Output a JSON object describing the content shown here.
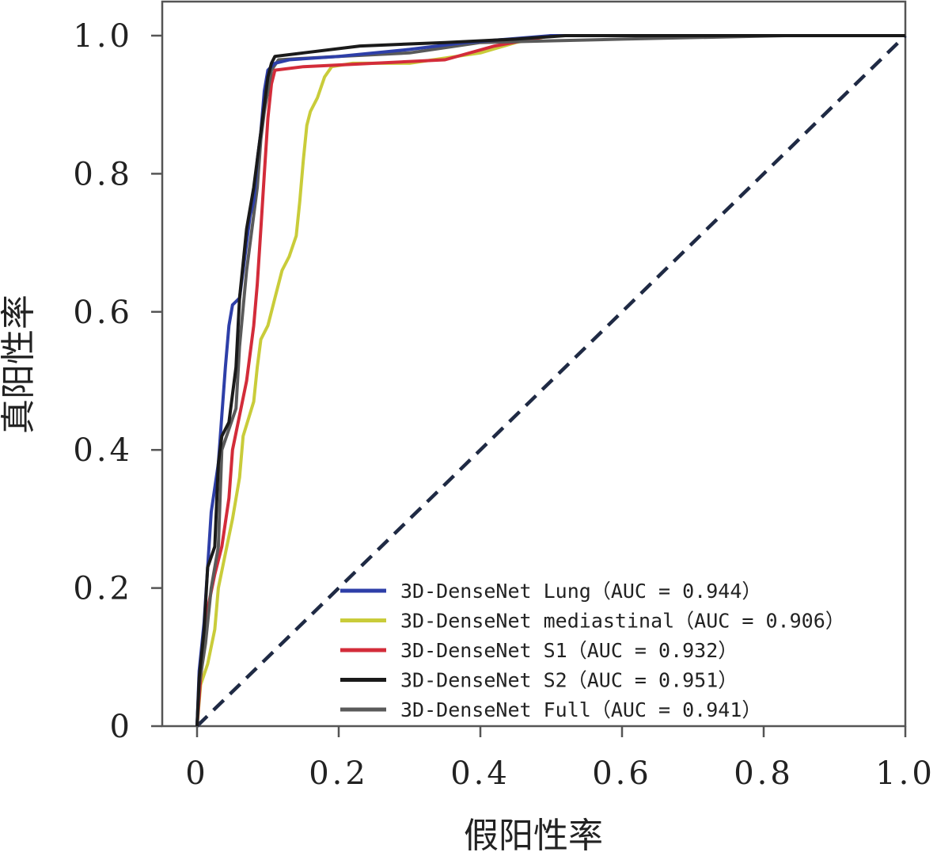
{
  "chart_data": {
    "type": "line",
    "title": "",
    "xlabel": "假阳性率",
    "ylabel": "真阳性率",
    "xlim": [
      0,
      1.0
    ],
    "ylim": [
      0,
      1.0
    ],
    "grid": false,
    "legend_position": "bottom-right",
    "x_ticks": [
      {
        "value": 0,
        "label": "0"
      },
      {
        "value": 0.2,
        "label": "0.2"
      },
      {
        "value": 0.4,
        "label": "0.4"
      },
      {
        "value": 0.6,
        "label": "0.6"
      },
      {
        "value": 0.8,
        "label": "0.8"
      },
      {
        "value": 1.0,
        "label": "1.0"
      }
    ],
    "y_ticks": [
      {
        "value": 0,
        "label": "0"
      },
      {
        "value": 0.2,
        "label": "0.2"
      },
      {
        "value": 0.4,
        "label": "0.4"
      },
      {
        "value": 0.6,
        "label": "0.6"
      },
      {
        "value": 0.8,
        "label": "0.8"
      },
      {
        "value": 1.0,
        "label": "1.0"
      }
    ],
    "diagonal": {
      "points": [
        [
          0,
          0
        ],
        [
          1,
          1
        ]
      ],
      "color": "#1f2a44",
      "style": "dashed"
    },
    "series": [
      {
        "name": "3D-DenseNet Lung（AUC = 0.944）",
        "color": "#2e3fa8",
        "points": [
          [
            0,
            0
          ],
          [
            0.003,
            0.08
          ],
          [
            0.01,
            0.15
          ],
          [
            0.02,
            0.31
          ],
          [
            0.03,
            0.38
          ],
          [
            0.035,
            0.45
          ],
          [
            0.04,
            0.52
          ],
          [
            0.045,
            0.58
          ],
          [
            0.05,
            0.61
          ],
          [
            0.06,
            0.62
          ],
          [
            0.065,
            0.66
          ],
          [
            0.07,
            0.7
          ],
          [
            0.075,
            0.74
          ],
          [
            0.08,
            0.76
          ],
          [
            0.085,
            0.82
          ],
          [
            0.09,
            0.86
          ],
          [
            0.095,
            0.92
          ],
          [
            0.1,
            0.95
          ],
          [
            0.11,
            0.96
          ],
          [
            0.13,
            0.965
          ],
          [
            0.2,
            0.97
          ],
          [
            0.3,
            0.98
          ],
          [
            0.38,
            0.99
          ],
          [
            0.5,
            1.0
          ],
          [
            1.0,
            1.0
          ]
        ]
      },
      {
        "name": "3D-DenseNet mediastinal（AUC = 0.906）",
        "color": "#c9cc3a",
        "points": [
          [
            0,
            0
          ],
          [
            0.005,
            0.06
          ],
          [
            0.015,
            0.09
          ],
          [
            0.025,
            0.14
          ],
          [
            0.03,
            0.2
          ],
          [
            0.04,
            0.25
          ],
          [
            0.05,
            0.3
          ],
          [
            0.06,
            0.36
          ],
          [
            0.065,
            0.42
          ],
          [
            0.08,
            0.47
          ],
          [
            0.085,
            0.52
          ],
          [
            0.09,
            0.56
          ],
          [
            0.1,
            0.58
          ],
          [
            0.11,
            0.62
          ],
          [
            0.12,
            0.66
          ],
          [
            0.13,
            0.68
          ],
          [
            0.14,
            0.71
          ],
          [
            0.145,
            0.76
          ],
          [
            0.15,
            0.82
          ],
          [
            0.155,
            0.87
          ],
          [
            0.16,
            0.89
          ],
          [
            0.17,
            0.91
          ],
          [
            0.18,
            0.94
          ],
          [
            0.19,
            0.955
          ],
          [
            0.22,
            0.96
          ],
          [
            0.3,
            0.96
          ],
          [
            0.4,
            0.975
          ],
          [
            0.45,
            0.99
          ],
          [
            0.5,
            1.0
          ],
          [
            1.0,
            1.0
          ]
        ]
      },
      {
        "name": "3D-DenseNet S1（AUC = 0.932）",
        "color": "#d32c3a",
        "points": [
          [
            0,
            0
          ],
          [
            0.005,
            0.07
          ],
          [
            0.015,
            0.17
          ],
          [
            0.025,
            0.22
          ],
          [
            0.035,
            0.26
          ],
          [
            0.045,
            0.33
          ],
          [
            0.05,
            0.4
          ],
          [
            0.06,
            0.45
          ],
          [
            0.07,
            0.5
          ],
          [
            0.08,
            0.58
          ],
          [
            0.085,
            0.64
          ],
          [
            0.09,
            0.72
          ],
          [
            0.095,
            0.8
          ],
          [
            0.1,
            0.88
          ],
          [
            0.105,
            0.93
          ],
          [
            0.11,
            0.95
          ],
          [
            0.15,
            0.955
          ],
          [
            0.25,
            0.96
          ],
          [
            0.35,
            0.965
          ],
          [
            0.42,
            0.985
          ],
          [
            0.5,
            1.0
          ],
          [
            1.0,
            1.0
          ]
        ]
      },
      {
        "name": "3D-DenseNet S2（AUC = 0.951）",
        "color": "#1a1a1a",
        "points": [
          [
            0,
            0
          ],
          [
            0.003,
            0.07
          ],
          [
            0.01,
            0.14
          ],
          [
            0.015,
            0.23
          ],
          [
            0.025,
            0.26
          ],
          [
            0.03,
            0.38
          ],
          [
            0.035,
            0.42
          ],
          [
            0.045,
            0.44
          ],
          [
            0.055,
            0.52
          ],
          [
            0.06,
            0.62
          ],
          [
            0.065,
            0.67
          ],
          [
            0.07,
            0.72
          ],
          [
            0.08,
            0.78
          ],
          [
            0.085,
            0.82
          ],
          [
            0.09,
            0.86
          ],
          [
            0.095,
            0.9
          ],
          [
            0.1,
            0.94
          ],
          [
            0.105,
            0.96
          ],
          [
            0.11,
            0.97
          ],
          [
            0.15,
            0.975
          ],
          [
            0.23,
            0.985
          ],
          [
            0.35,
            0.99
          ],
          [
            0.45,
            0.995
          ],
          [
            0.52,
            1.0
          ],
          [
            1.0,
            1.0
          ]
        ]
      },
      {
        "name": "3D-DenseNet Full（AUC = 0.941）",
        "color": "#5a5a5a",
        "points": [
          [
            0,
            0
          ],
          [
            0.003,
            0.06
          ],
          [
            0.012,
            0.12
          ],
          [
            0.02,
            0.2
          ],
          [
            0.03,
            0.26
          ],
          [
            0.035,
            0.4
          ],
          [
            0.045,
            0.43
          ],
          [
            0.055,
            0.46
          ],
          [
            0.06,
            0.55
          ],
          [
            0.07,
            0.66
          ],
          [
            0.075,
            0.7
          ],
          [
            0.08,
            0.74
          ],
          [
            0.085,
            0.78
          ],
          [
            0.09,
            0.85
          ],
          [
            0.095,
            0.89
          ],
          [
            0.1,
            0.92
          ],
          [
            0.105,
            0.95
          ],
          [
            0.115,
            0.965
          ],
          [
            0.2,
            0.97
          ],
          [
            0.3,
            0.975
          ],
          [
            0.4,
            0.99
          ],
          [
            0.6,
            0.995
          ],
          [
            0.83,
            1.0
          ],
          [
            1.0,
            1.0
          ]
        ]
      }
    ]
  }
}
